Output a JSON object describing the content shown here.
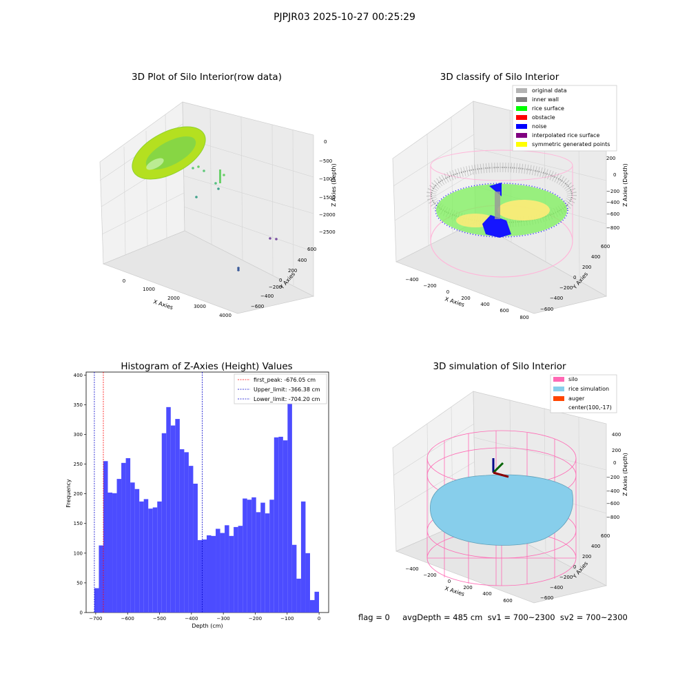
{
  "suptitle": "PJPJR03 2025-10-27 00:25:29",
  "status_line": "flag = 0     avgDepth = 485 cm  sv1 = 700~2300  sv2 = 700~2300",
  "colors": {
    "histogram_bar": "#4c4cff",
    "first_peak": "#ff0000",
    "limits": "#0000cc",
    "original_data": "#b3b3b3",
    "inner_wall": "#808080",
    "rice_surface": "#00ff00",
    "obstacle": "#ff0000",
    "noise": "#0000ff",
    "interpolated_rice_surface": "#800080",
    "symmetric_generated_points": "#ffff00",
    "silo": "#ff69b4",
    "rice_simulation": "#87ceeb",
    "auger": "#ff4500"
  },
  "chart_data": [
    {
      "type": "scatter",
      "projection": "3d",
      "title": "3D Plot of Silo Interior(row data)",
      "xlabel": "X Axies",
      "ylabel": "Y Axies",
      "zlabel": "Z Axies (Depth)",
      "xticks": [
        "0",
        "1000",
        "2000",
        "3000",
        "4000"
      ],
      "yticks": [
        "600",
        "400",
        "200",
        "0",
        "−200",
        "−400",
        "−600"
      ],
      "zticks": [
        "0",
        "−500",
        "−1000",
        "−1500",
        "−2000",
        "−2500"
      ],
      "grid": true
    },
    {
      "type": "scatter",
      "projection": "3d",
      "title": "3D classify of Silo Interior",
      "xlabel": "X Axies",
      "ylabel": "Y Axies",
      "zlabel": "Z Axies (Depth)",
      "xticks": [
        "−400",
        "−200",
        "0",
        "200",
        "400",
        "600",
        "800"
      ],
      "yticks": [
        "600",
        "400",
        "200",
        "0",
        "−200",
        "−400",
        "−600"
      ],
      "zticks": [
        "200",
        "0",
        "−200",
        "−400",
        "−600",
        "−800"
      ],
      "legend_position": "top-right",
      "legend": [
        "original data",
        "inner wall",
        "rice surface",
        "obstacle",
        "noise",
        "interpolated rice surface",
        "symmetric generated points"
      ],
      "grid": true
    },
    {
      "type": "bar",
      "title": "Histogram of Z-Axies (Height) Values",
      "xlabel": "Depth (cm)",
      "ylabel": "Frequency",
      "xlim": [
        -730,
        30
      ],
      "ylim": [
        0,
        405
      ],
      "xticks": [
        -700,
        -600,
        -500,
        -400,
        -300,
        -200,
        -100,
        0
      ],
      "xtick_labels": [
        "−700",
        "−600",
        "−500",
        "−400",
        "−300",
        "−200",
        "−100",
        "0"
      ],
      "yticks": [
        0,
        50,
        100,
        150,
        200,
        250,
        300,
        350,
        400
      ],
      "bin_start": -704.2,
      "bin_width": 14.08,
      "values": [
        41,
        113,
        255,
        202,
        201,
        225,
        252,
        260,
        219,
        208,
        187,
        191,
        175,
        177,
        187,
        302,
        346,
        315,
        326,
        275,
        270,
        247,
        217,
        122,
        123,
        130,
        129,
        141,
        134,
        147,
        129,
        144,
        146,
        192,
        190,
        194,
        169,
        185,
        167,
        190,
        295,
        296,
        290,
        380,
        114,
        57,
        187,
        100,
        21,
        35
      ],
      "vlines": [
        {
          "label": "first_peak: -676.05 cm",
          "x": -676.05,
          "color": "#ff0000"
        },
        {
          "label": "Upper_limit: -366.38 cm",
          "x": -366.38,
          "color": "#0000cc"
        },
        {
          "label": "Lower_limit: -704.20 cm",
          "x": -704.2,
          "color": "#0000cc"
        }
      ],
      "legend_position": "top-right"
    },
    {
      "type": "surface",
      "projection": "3d",
      "title": "3D simulation of Silo Interior",
      "xlabel": "X Axies",
      "ylabel": "Y Axies",
      "zlabel": "Z Axies (Depth)",
      "xticks": [
        "−400",
        "−200",
        "0",
        "200",
        "400",
        "600"
      ],
      "yticks": [
        "600",
        "400",
        "200",
        "0",
        "−200",
        "−400",
        "−600"
      ],
      "zticks": [
        "400",
        "200",
        "0",
        "−200",
        "−400",
        "−600",
        "−800"
      ],
      "legend_position": "top-right",
      "legend": [
        "silo",
        "rice simulation",
        "auger",
        "center(100,-17)"
      ],
      "grid": true
    }
  ]
}
